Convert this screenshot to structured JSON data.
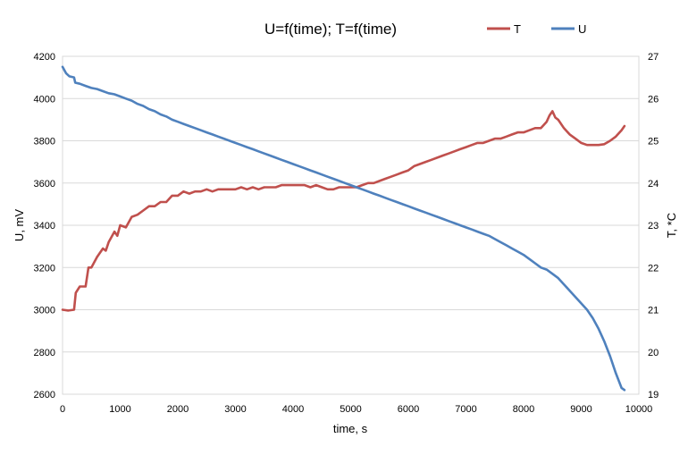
{
  "chart_data": {
    "type": "line",
    "title": "U=f(time);  T=f(time)",
    "xlabel": "time, s",
    "ylabel": "U, mV",
    "y2label": "T, *C",
    "xlim": [
      0,
      10000
    ],
    "ylim": [
      2600,
      4200
    ],
    "y2lim": [
      19,
      27
    ],
    "x_ticks": [
      0,
      1000,
      2000,
      3000,
      4000,
      5000,
      6000,
      7000,
      8000,
      9000,
      10000
    ],
    "y_ticks": [
      2600,
      2800,
      3000,
      3200,
      3400,
      3600,
      3800,
      4000,
      4200
    ],
    "y2_ticks": [
      19,
      20,
      21,
      22,
      23,
      24,
      25,
      26,
      27
    ],
    "grid": true,
    "legend": "top-right",
    "series": [
      {
        "name": "T",
        "axis": "right",
        "color": "#c0504d",
        "x": [
          0,
          100,
          200,
          230,
          300,
          400,
          450,
          500,
          600,
          700,
          750,
          800,
          900,
          950,
          1000,
          1100,
          1200,
          1300,
          1400,
          1500,
          1600,
          1700,
          1800,
          1900,
          2000,
          2100,
          2200,
          2300,
          2400,
          2500,
          2600,
          2700,
          2800,
          2900,
          3000,
          3100,
          3200,
          3300,
          3400,
          3500,
          3600,
          3700,
          3800,
          3900,
          4000,
          4100,
          4200,
          4300,
          4400,
          4500,
          4600,
          4700,
          4800,
          4900,
          5000,
          5100,
          5200,
          5300,
          5400,
          5500,
          5600,
          5700,
          5800,
          5900,
          6000,
          6100,
          6200,
          6300,
          6400,
          6500,
          6600,
          6700,
          6800,
          6900,
          7000,
          7100,
          7200,
          7300,
          7400,
          7500,
          7600,
          7700,
          7800,
          7900,
          8000,
          8100,
          8200,
          8300,
          8400,
          8450,
          8500,
          8550,
          8600,
          8700,
          8800,
          8900,
          9000,
          9100,
          9200,
          9300,
          9400,
          9500,
          9600,
          9700,
          9750
        ],
        "values": [
          21.0,
          20.98,
          21.0,
          21.4,
          21.55,
          21.55,
          22.0,
          22.0,
          22.25,
          22.45,
          22.4,
          22.6,
          22.85,
          22.75,
          23.0,
          22.95,
          23.2,
          23.25,
          23.35,
          23.45,
          23.45,
          23.55,
          23.55,
          23.7,
          23.7,
          23.8,
          23.75,
          23.8,
          23.8,
          23.85,
          23.8,
          23.85,
          23.85,
          23.85,
          23.85,
          23.9,
          23.85,
          23.9,
          23.85,
          23.9,
          23.9,
          23.9,
          23.95,
          23.95,
          23.95,
          23.95,
          23.95,
          23.9,
          23.95,
          23.9,
          23.85,
          23.85,
          23.9,
          23.9,
          23.9,
          23.9,
          23.95,
          24.0,
          24.0,
          24.05,
          24.1,
          24.15,
          24.2,
          24.25,
          24.3,
          24.4,
          24.45,
          24.5,
          24.55,
          24.6,
          24.65,
          24.7,
          24.75,
          24.8,
          24.85,
          24.9,
          24.95,
          24.95,
          25.0,
          25.05,
          25.05,
          25.1,
          25.15,
          25.2,
          25.2,
          25.25,
          25.3,
          25.3,
          25.45,
          25.6,
          25.7,
          25.55,
          25.5,
          25.3,
          25.15,
          25.05,
          24.95,
          24.9,
          24.9,
          24.9,
          24.92,
          25.0,
          25.1,
          25.25,
          25.35
        ]
      },
      {
        "name": "U",
        "axis": "left",
        "color": "#4f81bd",
        "x": [
          0,
          60,
          120,
          200,
          220,
          300,
          400,
          500,
          600,
          700,
          800,
          900,
          1000,
          1100,
          1200,
          1300,
          1400,
          1500,
          1600,
          1700,
          1800,
          1900,
          2000,
          2100,
          2200,
          2300,
          2400,
          2500,
          2600,
          2700,
          2800,
          2900,
          3000,
          3100,
          3200,
          3300,
          3400,
          3500,
          3600,
          3700,
          3800,
          3900,
          4000,
          4100,
          4200,
          4300,
          4400,
          4500,
          4600,
          4700,
          4800,
          4900,
          5000,
          5100,
          5200,
          5300,
          5400,
          5500,
          5600,
          5700,
          5800,
          5900,
          6000,
          6100,
          6200,
          6300,
          6400,
          6500,
          6600,
          6700,
          6800,
          6900,
          7000,
          7100,
          7200,
          7300,
          7400,
          7500,
          7600,
          7700,
          7800,
          7900,
          8000,
          8100,
          8200,
          8300,
          8400,
          8500,
          8600,
          8700,
          8800,
          8900,
          9000,
          9100,
          9200,
          9300,
          9400,
          9500,
          9600,
          9700,
          9750
        ],
        "values": [
          4150,
          4120,
          4105,
          4100,
          4075,
          4070,
          4060,
          4050,
          4045,
          4035,
          4025,
          4020,
          4010,
          4000,
          3990,
          3975,
          3965,
          3950,
          3940,
          3925,
          3915,
          3900,
          3890,
          3880,
          3870,
          3860,
          3850,
          3840,
          3830,
          3820,
          3810,
          3800,
          3790,
          3780,
          3770,
          3760,
          3750,
          3740,
          3730,
          3720,
          3710,
          3700,
          3690,
          3680,
          3670,
          3660,
          3650,
          3640,
          3630,
          3620,
          3610,
          3600,
          3590,
          3580,
          3570,
          3560,
          3550,
          3540,
          3530,
          3520,
          3510,
          3500,
          3490,
          3480,
          3470,
          3460,
          3450,
          3440,
          3430,
          3420,
          3410,
          3400,
          3390,
          3380,
          3370,
          3360,
          3350,
          3335,
          3320,
          3305,
          3290,
          3275,
          3260,
          3240,
          3220,
          3200,
          3190,
          3170,
          3150,
          3120,
          3090,
          3060,
          3030,
          3000,
          2960,
          2910,
          2850,
          2780,
          2700,
          2630,
          2620
        ]
      }
    ]
  }
}
